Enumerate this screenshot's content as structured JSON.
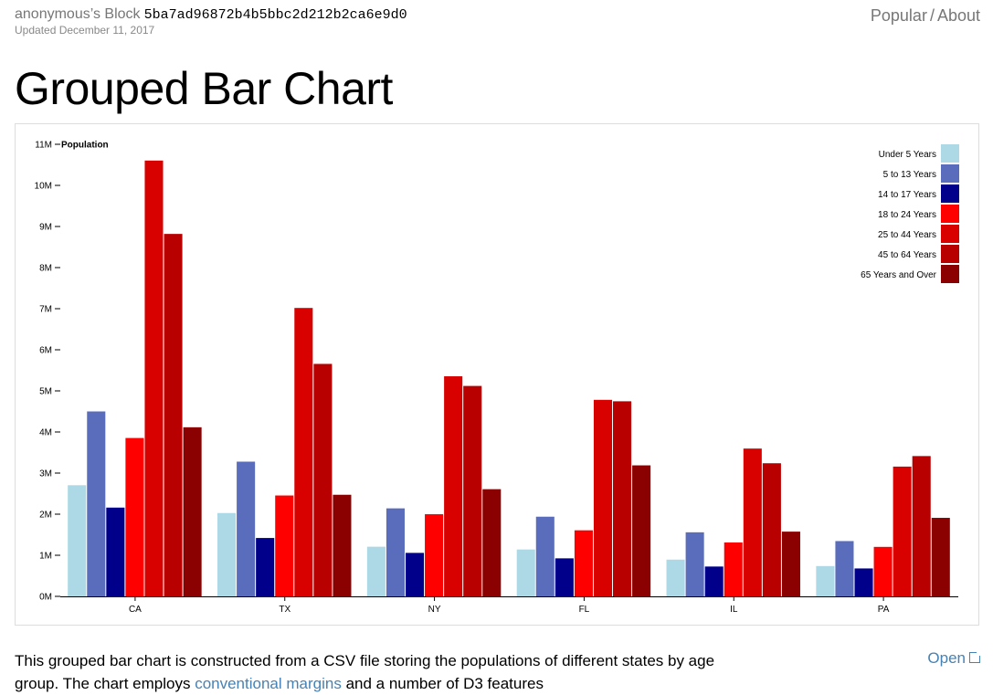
{
  "header": {
    "author_block": "anonymous’s Block",
    "gist_id": "5ba7ad96872b4b5bbc2d212b2ca6e9d0",
    "updated": "Updated December 11, 2017",
    "nav_popular": "Popular",
    "nav_sep": "/",
    "nav_about": "About"
  },
  "page": {
    "title": "Grouped Bar Chart",
    "description_start": "This grouped bar chart is constructed from a CSV file storing the populations of different states by age group. The chart employs ",
    "description_link": "conventional margins",
    "description_end": " and a number of D3 features",
    "open_link": "Open"
  },
  "chart_data": {
    "type": "bar",
    "ylabel": "Population",
    "ylim": [
      0,
      11000000
    ],
    "yticks": [
      0,
      1000000,
      2000000,
      3000000,
      4000000,
      5000000,
      6000000,
      7000000,
      8000000,
      9000000,
      10000000,
      11000000
    ],
    "ytick_labels": [
      "0M",
      "1M",
      "2M",
      "3M",
      "4M",
      "5M",
      "6M",
      "7M",
      "8M",
      "9M",
      "10M",
      "11M"
    ],
    "categories": [
      "CA",
      "TX",
      "NY",
      "FL",
      "IL",
      "PA"
    ],
    "legend_position": "top-right",
    "series": [
      {
        "name": "Under 5 Years",
        "color": "#add8e6",
        "values": [
          2704659,
          2027307,
          1208495,
          1140516,
          894368,
          737462
        ]
      },
      {
        "name": "5 to 13 Years",
        "color": "#5a6dbd",
        "values": [
          4499890,
          3277946,
          2141490,
          1938695,
          1558919,
          1345341
        ]
      },
      {
        "name": "14 to 17 Years",
        "color": "#00008b",
        "values": [
          2159981,
          1420518,
          1058031,
          925060,
          725973,
          679201
        ]
      },
      {
        "name": "18 to 24 Years",
        "color": "#ff0000",
        "values": [
          3853788,
          2454721,
          1999120,
          1607297,
          1311479,
          1203944
        ]
      },
      {
        "name": "25 to 44 Years",
        "color": "#d90000",
        "values": [
          10604510,
          7017731,
          5355235,
          4782119,
          3596343,
          3157759
        ]
      },
      {
        "name": "45 to 64 Years",
        "color": "#b80000",
        "values": [
          8819342,
          5656528,
          5120254,
          4746856,
          3239173,
          3414001
        ]
      },
      {
        "name": "65 Years and Over",
        "color": "#8b0000",
        "values": [
          4114496,
          2472223,
          2607672,
          3187797,
          1575308,
          1910571
        ]
      }
    ]
  }
}
